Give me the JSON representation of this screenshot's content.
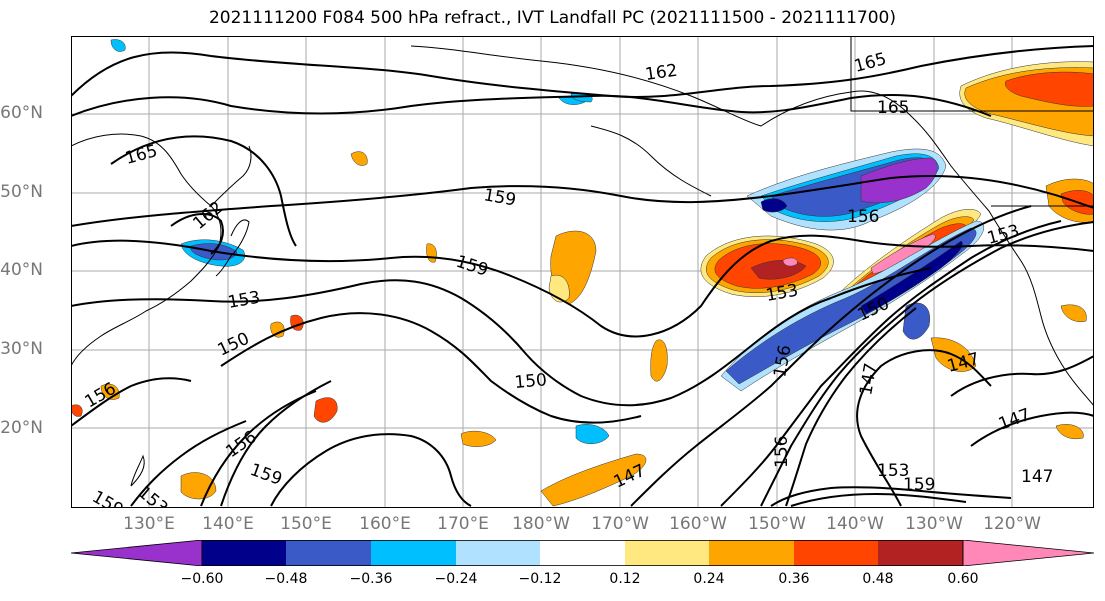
{
  "title": "2021111200 F084 500 hPa refract., IVT Landfall PC (2021111500 - 2021111700)",
  "lat_labels": [
    "60°N",
    "50°N",
    "40°N",
    "30°N",
    "20°N"
  ],
  "lon_labels": [
    "130°E",
    "140°E",
    "150°E",
    "160°E",
    "170°E",
    "180°W",
    "170°W",
    "160°W",
    "150°W",
    "140°W",
    "130°W",
    "120°W"
  ],
  "contour_labels": [
    "162",
    "165",
    "165",
    "165",
    "159",
    "159",
    "162",
    "153",
    "150",
    "156",
    "150",
    "156",
    "159",
    "153",
    "153",
    "159",
    "147",
    "150",
    "153",
    "156",
    "156",
    "153",
    "147",
    "147",
    "159",
    "147",
    "147",
    "156"
  ],
  "colorbar": {
    "ticks": [
      "−0.60",
      "−0.48",
      "−0.36",
      "−0.24",
      "−0.12",
      "0.12",
      "0.24",
      "0.36",
      "0.48",
      "0.60"
    ],
    "colors": [
      "#9932cc",
      "#00008b",
      "#3a5bc7",
      "#00bfff",
      "#b0e2ff",
      "#ffffff",
      "#ffe880",
      "#ffa500",
      "#ff4500",
      "#b22222",
      "#ff88b8"
    ]
  }
}
